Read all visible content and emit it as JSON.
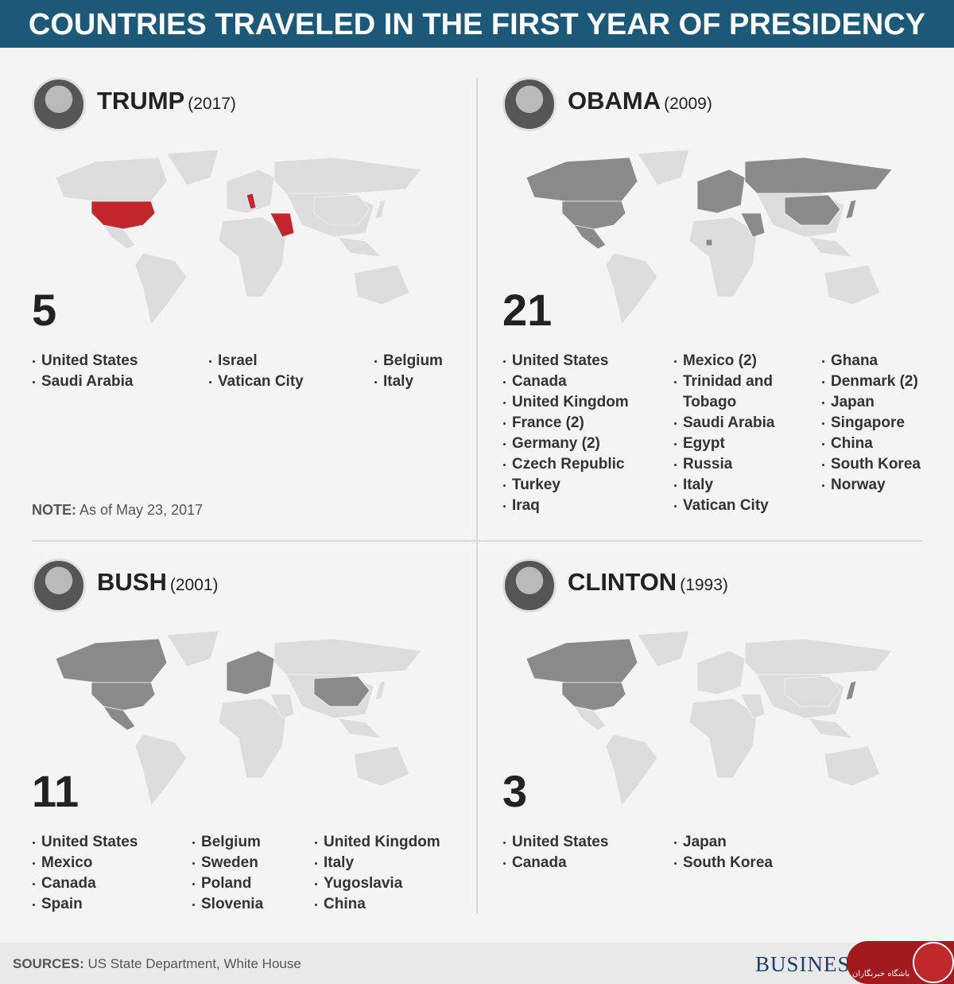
{
  "header": {
    "title": "COUNTRIES TRAVELED IN THE FIRST YEAR OF PRESIDENCY"
  },
  "panels": [
    {
      "name": "TRUMP",
      "year": "(2017)",
      "count": 5,
      "columns": [
        [
          "United States",
          "Saudi Arabia"
        ],
        [
          "Israel",
          "Vatican City"
        ],
        [
          "Belgium",
          "Italy"
        ]
      ],
      "note": {
        "label": "NOTE:",
        "text": "As of May 23, 2017"
      }
    },
    {
      "name": "OBAMA",
      "year": "(2009)",
      "count": 21,
      "columns": [
        [
          "United States",
          "Canada",
          "United Kingdom",
          "France (2)",
          "Germany (2)",
          "Czech Republic",
          "Turkey",
          "Iraq"
        ],
        [
          "Mexico (2)",
          "Trinidad and Tobago",
          "Saudi Arabia",
          "Egypt",
          "Russia",
          "Italy",
          "Vatican City"
        ],
        [
          "Ghana",
          "Denmark (2)",
          "Japan",
          "Singapore",
          "China",
          "South Korea",
          "Norway"
        ]
      ]
    },
    {
      "name": "BUSH",
      "year": "(2001)",
      "count": 11,
      "columns": [
        [
          "United States",
          "Mexico",
          "Canada",
          "Spain"
        ],
        [
          "Belgium",
          "Sweden",
          "Poland",
          "Slovenia"
        ],
        [
          "United Kingdom",
          "Italy",
          "Yugoslavia",
          "China"
        ]
      ]
    },
    {
      "name": "CLINTON",
      "year": "(1993)",
      "count": 3,
      "columns": [
        [
          "United States",
          "Canada"
        ],
        [
          "Japan",
          "South Korea"
        ]
      ]
    }
  ],
  "footer": {
    "sources_label": "SOURCES:",
    "sources_text": "US State Department, White House",
    "logo": "BUSINESS INSIDER",
    "watermark": "باشگاه خبرنگاران"
  }
}
